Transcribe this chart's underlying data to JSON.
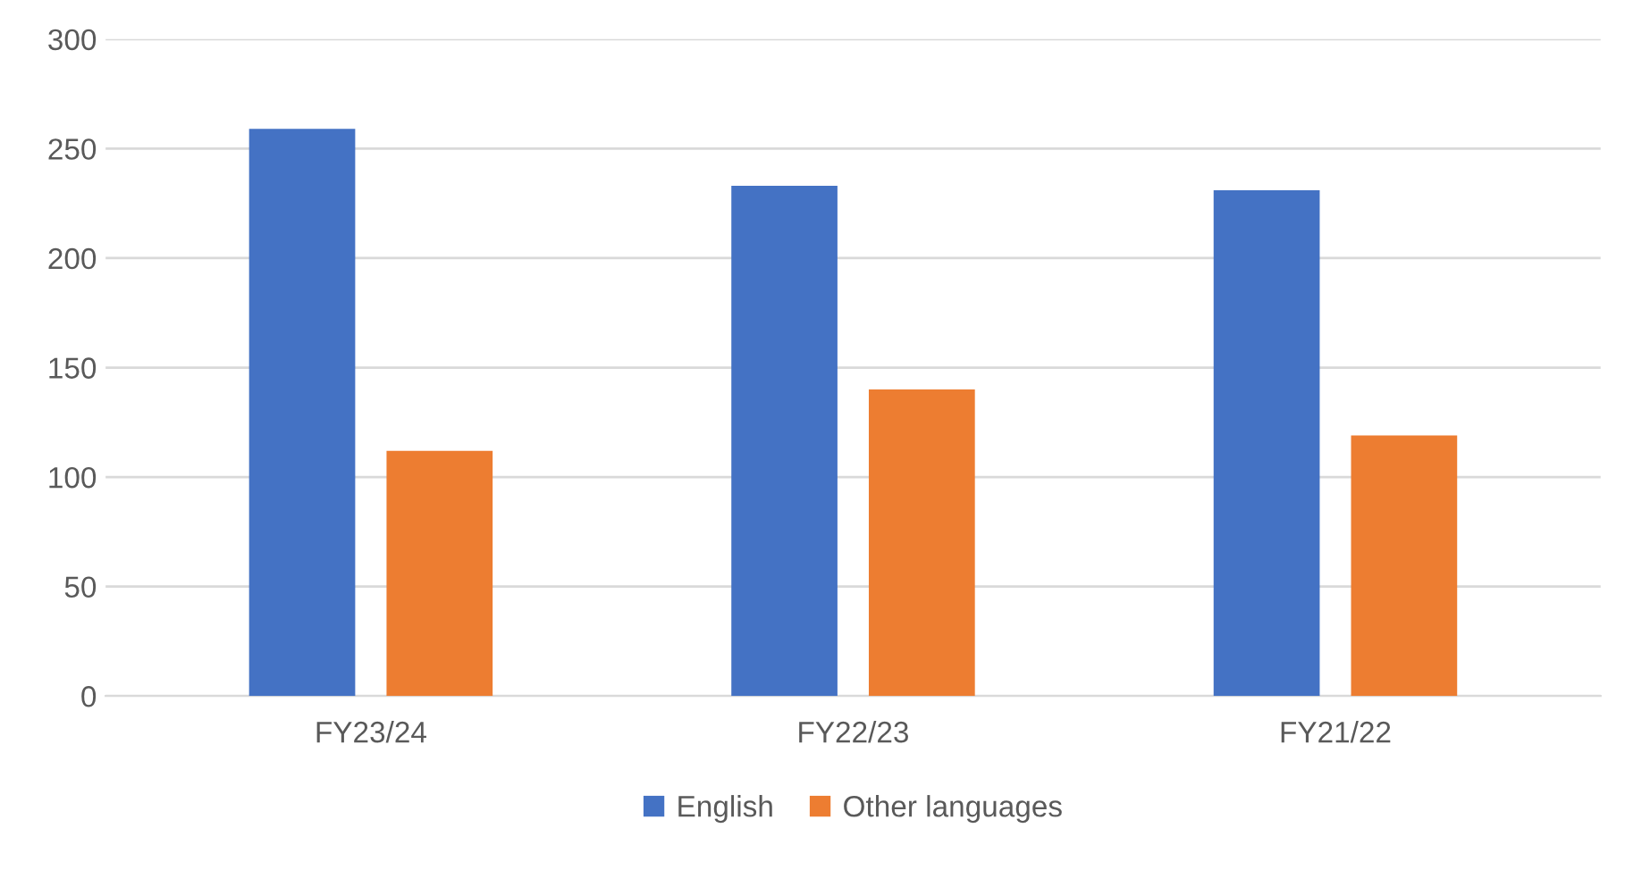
{
  "chart_data": {
    "type": "bar",
    "categories": [
      "FY23/24",
      "FY22/23",
      "FY21/22"
    ],
    "series": [
      {
        "name": "English",
        "color": "#4472c4",
        "values": [
          259,
          233,
          231
        ]
      },
      {
        "name": "Other languages",
        "color": "#ed7d31",
        "values": [
          112,
          140,
          119
        ]
      }
    ],
    "ylim": [
      0,
      300
    ],
    "yticks": [
      0,
      50,
      100,
      150,
      200,
      250,
      300
    ],
    "grid": "y",
    "legend": "bottom"
  }
}
